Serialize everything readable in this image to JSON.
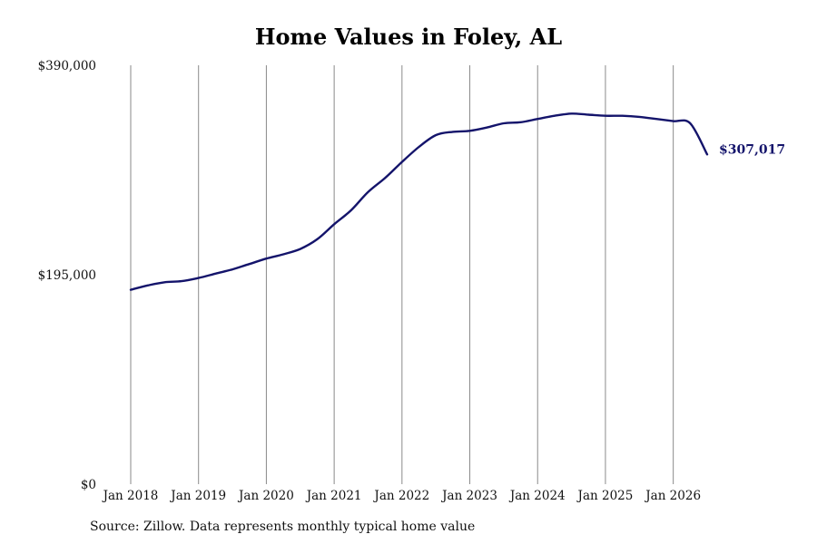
{
  "chart_data": {
    "type": "line",
    "title": "Home Values in Foley, AL",
    "source": "Source: Zillow. Data represents monthly typical home value",
    "ylim": [
      0,
      390000
    ],
    "y_ticks": [
      {
        "value": 0,
        "label": "$0"
      },
      {
        "value": 195000,
        "label": "$195,000"
      },
      {
        "value": 390000,
        "label": "$390,000"
      }
    ],
    "x_ticks": [
      {
        "value": 2018.0,
        "label": "Jan 2018"
      },
      {
        "value": 2019.0,
        "label": "Jan 2019"
      },
      {
        "value": 2020.0,
        "label": "Jan 2020"
      },
      {
        "value": 2021.0,
        "label": "Jan 2021"
      },
      {
        "value": 2022.0,
        "label": "Jan 2022"
      },
      {
        "value": 2023.0,
        "label": "Jan 2023"
      },
      {
        "value": 2024.0,
        "label": "Jan 2024"
      },
      {
        "value": 2025.0,
        "label": "Jan 2025"
      },
      {
        "value": 2026.0,
        "label": "Jan 2026"
      }
    ],
    "xlim": [
      2018.0,
      2026.5
    ],
    "grid": "vertical",
    "line_color": "#14146b",
    "end_label": "$307,017",
    "series": [
      {
        "x": [
          2018.0,
          2018.25,
          2018.5,
          2018.75,
          2019.0,
          2019.25,
          2019.5,
          2019.75,
          2020.0,
          2020.25,
          2020.5,
          2020.75,
          2021.0,
          2021.25,
          2021.5,
          2021.75,
          2022.0,
          2022.25,
          2022.5,
          2022.75,
          2023.0,
          2023.25,
          2023.5,
          2023.75,
          2024.0,
          2024.25,
          2024.5,
          2024.75,
          2025.0,
          2025.25,
          2025.5,
          2025.75,
          2026.0,
          2026.25,
          2026.5
        ],
        "y": [
          181000,
          185000,
          188000,
          189000,
          192000,
          196000,
          200000,
          205000,
          210000,
          214000,
          219000,
          228000,
          242000,
          255000,
          272000,
          285000,
          300000,
          314000,
          325000,
          328000,
          329000,
          332000,
          336000,
          337000,
          340000,
          343000,
          345000,
          344000,
          343000,
          343000,
          342000,
          340000,
          338000,
          336000,
          307017
        ]
      }
    ]
  }
}
